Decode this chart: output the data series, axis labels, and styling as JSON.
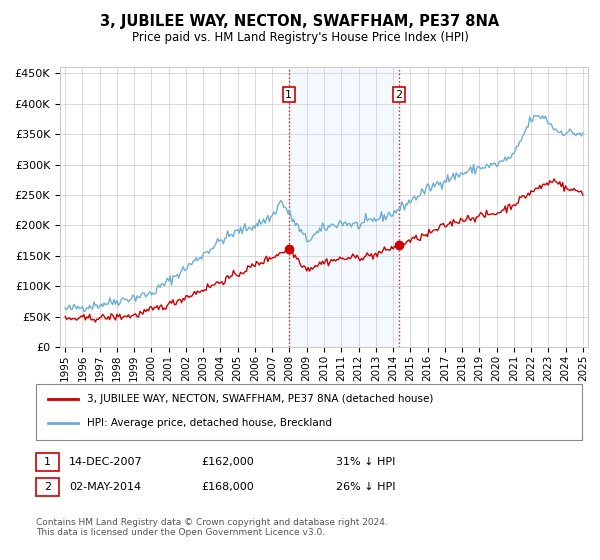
{
  "title": "3, JUBILEE WAY, NECTON, SWAFFHAM, PE37 8NA",
  "subtitle": "Price paid vs. HM Land Registry's House Price Index (HPI)",
  "ylim": [
    0,
    470000
  ],
  "xlim_start": 1994.7,
  "xlim_end": 2025.3,
  "sale1_x": 2007.96,
  "sale1_price": 162000,
  "sale1_date": "14-DEC-2007",
  "sale2_x": 2014.34,
  "sale2_price": 168000,
  "sale2_date": "02-MAY-2014",
  "legend_line1": "3, JUBILEE WAY, NECTON, SWAFFHAM, PE37 8NA (detached house)",
  "legend_line2": "HPI: Average price, detached house, Breckland",
  "footer": "Contains HM Land Registry data © Crown copyright and database right 2024.\nThis data is licensed under the Open Government Licence v3.0.",
  "hpi_color": "#6baed6",
  "price_color": "#cc0000",
  "background_shade": "#ddeeff",
  "yticks": [
    0,
    50000,
    100000,
    150000,
    200000,
    250000,
    300000,
    350000,
    400000,
    450000
  ],
  "ylabels": [
    "£0",
    "£50K",
    "£100K",
    "£150K",
    "£200K",
    "£250K",
    "£300K",
    "£350K",
    "£400K",
    "£450K"
  ]
}
